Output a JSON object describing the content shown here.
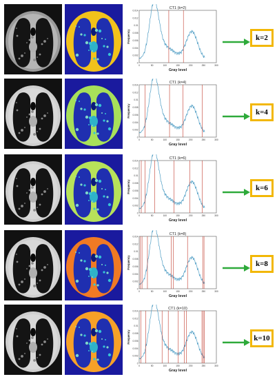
{
  "accent": {
    "threshold_line": "#c0392b",
    "histogram": "#4f9dc4",
    "arrow": "#2eaa3a",
    "box_border": "#f2b705"
  },
  "rows": [
    {
      "title": "CT1  (k=2)",
      "k_label": "k=2",
      "seg_bg": "#f2c21b",
      "thresholds": [
        115,
        172
      ],
      "ct_tone": "dark"
    },
    {
      "title": "CT1  (k=4)",
      "k_label": "k=4",
      "seg_bg": "#a8e05a",
      "thresholds": [
        23,
        118,
        170,
        245
      ],
      "ct_tone": "light"
    },
    {
      "title": "CT1  (k=6)",
      "k_label": "k=6",
      "seg_bg": "#b7e25a",
      "thresholds": [
        8,
        23,
        60,
        135,
        197,
        245
      ],
      "ct_tone": "light"
    },
    {
      "title": "CT1  (k=8)",
      "k_label": "k=8",
      "seg_bg": "#f07a24",
      "thresholds": [
        5,
        11,
        32,
        125,
        133,
        188,
        247,
        252
      ],
      "ct_tone": "light"
    },
    {
      "title": "CT1  (k=10)",
      "k_label": "k=10",
      "seg_bg": "#f7a128",
      "thresholds": [
        7,
        25,
        89,
        113,
        152,
        175,
        183,
        244,
        249,
        253
      ],
      "ct_tone": "light"
    }
  ],
  "axis": {
    "xlabel": "Gray  level",
    "ylabel": "Frequency",
    "xticks": [
      "0",
      "50",
      "100",
      "150",
      "200",
      "250",
      "300"
    ],
    "yticks": [
      "0",
      "0.002",
      "0.004",
      "0.006",
      "0.008",
      "0.01",
      "0.012",
      "0.014"
    ]
  },
  "icons": {
    "arrow": "arrow-right-icon"
  }
}
